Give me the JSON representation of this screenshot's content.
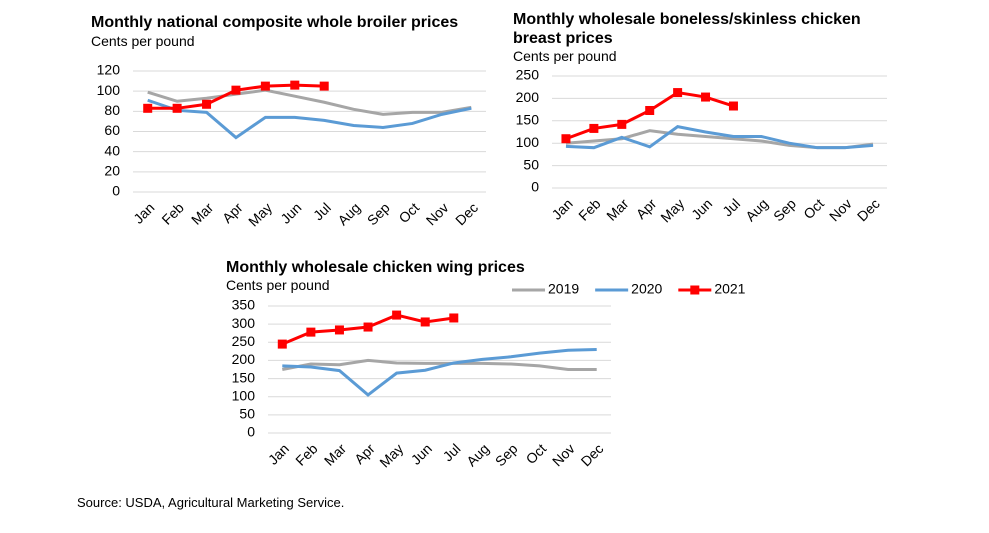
{
  "source": "Source: USDA, Agricultural Marketing Service.",
  "chart_data": [
    {
      "type": "line",
      "title": "Monthly national composite whole broiler prices",
      "subtitle": "Cents per pound",
      "categories": [
        "Jan",
        "Feb",
        "Mar",
        "Apr",
        "May",
        "Jun",
        "Jul",
        "Aug",
        "Sep",
        "Oct",
        "Nov",
        "Dec"
      ],
      "ylim": [
        0,
        120
      ],
      "yticks": [
        0,
        20,
        40,
        60,
        80,
        100,
        120
      ],
      "grid": true,
      "series": [
        {
          "color": "#a6a6a6",
          "values": [
            99,
            90,
            93,
            97,
            101,
            95,
            89,
            82,
            77,
            79,
            79,
            84
          ]
        },
        {
          "color": "#5b9bd5",
          "values": [
            91,
            81,
            79,
            54,
            74,
            74,
            71,
            66,
            64,
            68,
            77,
            83
          ]
        },
        {
          "color": "#ff0000",
          "marker": "square",
          "values": [
            83,
            83,
            87,
            101,
            105,
            106,
            105,
            null,
            null,
            null,
            null,
            null
          ]
        }
      ]
    },
    {
      "type": "line",
      "title": "Monthly wholesale boneless/skinless chicken breast prices",
      "subtitle": "Cents per pound",
      "categories": [
        "Jan",
        "Feb",
        "Mar",
        "Apr",
        "May",
        "Jun",
        "Jul",
        "Aug",
        "Sep",
        "Oct",
        "Nov",
        "Dec"
      ],
      "ylim": [
        0,
        250
      ],
      "yticks": [
        0,
        50,
        100,
        150,
        200,
        250
      ],
      "grid": true,
      "series": [
        {
          "color": "#a6a6a6",
          "values": [
            100,
            105,
            110,
            128,
            120,
            115,
            110,
            105,
            95,
            90,
            90,
            98
          ]
        },
        {
          "color": "#5b9bd5",
          "values": [
            93,
            90,
            113,
            92,
            137,
            125,
            115,
            115,
            100,
            90,
            90,
            95
          ]
        },
        {
          "color": "#ff0000",
          "marker": "square",
          "values": [
            110,
            133,
            142,
            173,
            213,
            203,
            183,
            null,
            null,
            null,
            null,
            null
          ]
        }
      ]
    },
    {
      "type": "line",
      "title": "Monthly wholesale chicken wing prices",
      "subtitle": "Cents per pound",
      "categories": [
        "Jan",
        "Feb",
        "Mar",
        "Apr",
        "May",
        "Jun",
        "Jul",
        "Aug",
        "Sep",
        "Oct",
        "Nov",
        "Dec"
      ],
      "ylim": [
        0,
        350
      ],
      "yticks": [
        0,
        50,
        100,
        150,
        200,
        250,
        300,
        350
      ],
      "grid": true,
      "legend": "top-right",
      "series": [
        {
          "name": "2019",
          "color": "#a6a6a6",
          "values": [
            175,
            190,
            188,
            200,
            193,
            192,
            192,
            192,
            190,
            185,
            175,
            175
          ]
        },
        {
          "name": "2020",
          "color": "#5b9bd5",
          "values": [
            185,
            182,
            172,
            105,
            165,
            173,
            193,
            203,
            210,
            220,
            228,
            230
          ]
        },
        {
          "name": "2021",
          "color": "#ff0000",
          "marker": "square",
          "values": [
            245,
            278,
            284,
            292,
            325,
            306,
            317,
            null,
            null,
            null,
            null,
            null
          ]
        }
      ]
    }
  ]
}
